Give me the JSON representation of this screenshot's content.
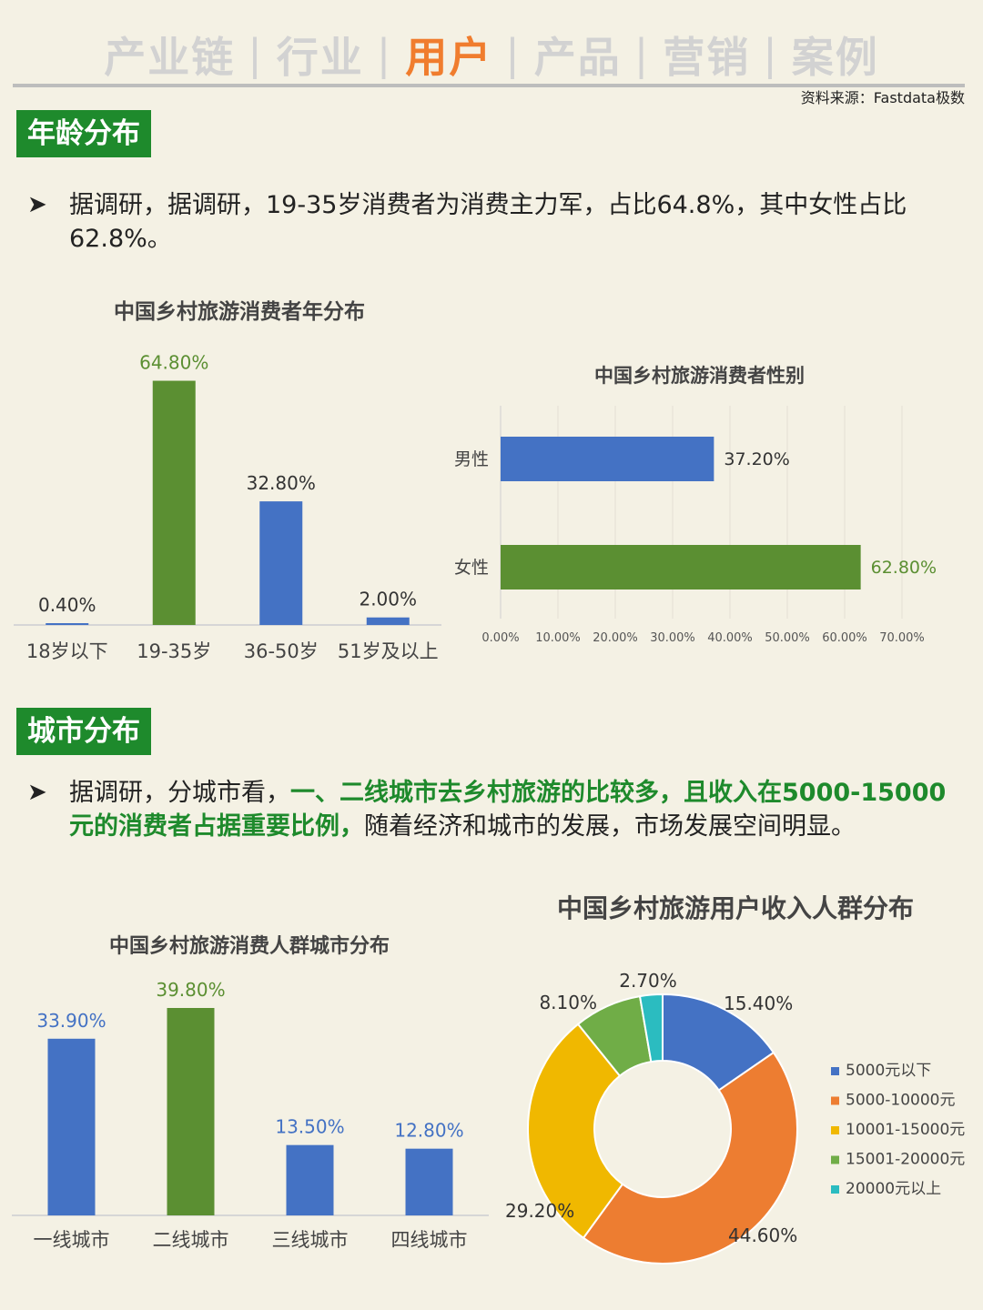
{
  "nav": {
    "items": [
      "产业链",
      "行业",
      "用户",
      "产品",
      "营销",
      "案例"
    ],
    "active_index": 2,
    "separator": "|"
  },
  "source": "资料来源：Fastdata极数",
  "colors": {
    "green": "#5b8f32",
    "blue": "#4472c4",
    "orange": "#ed7d31",
    "yellow": "#f0b800",
    "lightgreen": "#70ad47",
    "teal": "#2bbcc0",
    "tag": "#1e8a2c",
    "accent": "#f07d2e"
  },
  "section1": {
    "tag": "年龄分布",
    "bullet": "➤",
    "text": "据调研，据调研，19-35岁消费者为消费主力军，占比64.8%，其中女性占比62.8%。"
  },
  "section2": {
    "tag": "城市分布",
    "bullet": "➤",
    "text_before": "据调研，分城市看，",
    "text_highlight": "一、二线城市去乡村旅游的比较多，且收入在5000-15000元的消费者占据重要比例，",
    "text_after": "随着经济和城市的发展，市场发展空间明显。"
  },
  "chart_data": [
    {
      "type": "bar",
      "title": "中国乡村旅游消费者年分布",
      "categories": [
        "18岁以下",
        "19-35岁",
        "36-50岁",
        "51岁及以上"
      ],
      "values": [
        0.4,
        64.8,
        32.8,
        2.0
      ],
      "labels": [
        "0.40%",
        "64.80%",
        "32.80%",
        "2.00%"
      ],
      "colors": [
        "#4472c4",
        "#5b8f32",
        "#4472c4",
        "#4472c4"
      ],
      "ylim": [
        0,
        70
      ]
    },
    {
      "type": "bar",
      "orientation": "horizontal",
      "title": "中国乡村旅游消费者性别",
      "categories": [
        "男性",
        "女性"
      ],
      "values": [
        37.2,
        62.8
      ],
      "labels": [
        "37.20%",
        "62.80%"
      ],
      "colors": [
        "#4472c4",
        "#5b8f32"
      ],
      "xlim": [
        0,
        70
      ],
      "xticks": [
        "0.00%",
        "10.00%",
        "20.00%",
        "30.00%",
        "40.00%",
        "50.00%",
        "60.00%",
        "70.00%"
      ],
      "grid": true
    },
    {
      "type": "bar",
      "title": "中国乡村旅游消费人群城市分布",
      "categories": [
        "一线城市",
        "二线城市",
        "三线城市",
        "四线城市"
      ],
      "values": [
        33.9,
        39.8,
        13.5,
        12.8
      ],
      "labels": [
        "33.90%",
        "39.80%",
        "13.50%",
        "12.80%"
      ],
      "colors": [
        "#4472c4",
        "#5b8f32",
        "#4472c4",
        "#4472c4"
      ],
      "ylim": [
        0,
        45
      ]
    },
    {
      "type": "pie",
      "donut": true,
      "title": "中国乡村旅游用户收入人群分布",
      "categories": [
        "5000元以下",
        "5000-10000元",
        "10001-15000元",
        "15001-20000元",
        "20000元以上"
      ],
      "values": [
        15.4,
        44.6,
        29.2,
        8.1,
        2.7
      ],
      "labels": [
        "15.40%",
        "44.60%",
        "29.20%",
        "8.10%",
        "2.70%"
      ],
      "colors": [
        "#4472c4",
        "#ed7d31",
        "#f0b800",
        "#70ad47",
        "#2bbcc0"
      ],
      "legend": "right"
    }
  ]
}
